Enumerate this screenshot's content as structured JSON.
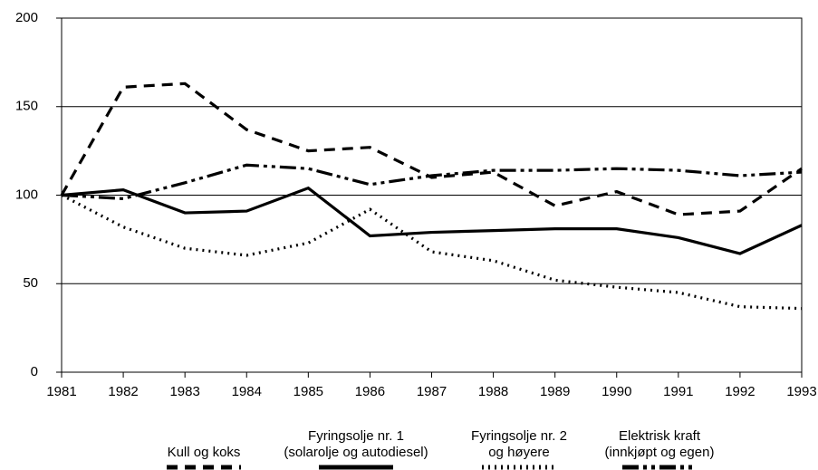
{
  "chart_data": {
    "type": "line",
    "x": [
      1981,
      1982,
      1983,
      1984,
      1985,
      1986,
      1987,
      1988,
      1989,
      1990,
      1991,
      1992,
      1993
    ],
    "xlim": [
      1981,
      1993
    ],
    "xticks": [
      1981,
      1982,
      1983,
      1984,
      1985,
      1986,
      1987,
      1988,
      1989,
      1990,
      1991,
      1992,
      1993
    ],
    "ylim": [
      0,
      200
    ],
    "yticks": [
      0,
      50,
      100,
      150,
      200
    ],
    "grid": true,
    "legend": "bottom",
    "series": [
      {
        "name": "Kull og koks",
        "color": "#000000",
        "style": "dashed",
        "values": [
          100,
          161,
          163,
          137,
          125,
          127,
          110,
          113,
          94,
          102,
          89,
          91,
          115
        ]
      },
      {
        "name": "Fyringsolje nr. 1\n(solarolje og autodiesel)",
        "color": "#000000",
        "style": "solid",
        "values": [
          100,
          103,
          90,
          91,
          104,
          77,
          79,
          80,
          81,
          81,
          76,
          67,
          83
        ]
      },
      {
        "name": "Fyringsolje nr. 2\nog høyere",
        "color": "#000000",
        "style": "dotted",
        "values": [
          100,
          82,
          70,
          66,
          73,
          92,
          68,
          63,
          52,
          48,
          45,
          37,
          36
        ]
      },
      {
        "name": "Elektrisk kraft\n(innkjøpt og egen)",
        "color": "#000000",
        "style": "dashdotdot",
        "values": [
          100,
          98,
          107,
          117,
          115,
          106,
          111,
          114,
          114,
          115,
          114,
          111,
          113
        ]
      }
    ]
  }
}
